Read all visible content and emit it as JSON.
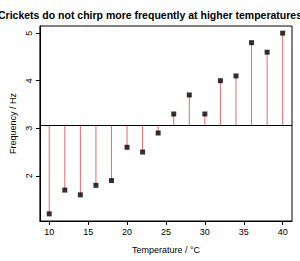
{
  "chart_data": {
    "type": "scatter",
    "title": "Crickets do not chirp more frequently at higher temperatures",
    "x_label": "Temperature / °C",
    "y_label": "Frequency / Hz",
    "x": [
      10,
      12,
      14,
      16,
      18,
      20,
      22,
      24,
      26,
      28,
      30,
      32,
      34,
      36,
      38,
      40
    ],
    "values": [
      1.2,
      1.7,
      1.6,
      1.8,
      1.9,
      2.6,
      2.5,
      2.9,
      3.3,
      3.7,
      3.3,
      4.0,
      4.1,
      4.8,
      4.6,
      5.0
    ],
    "baseline": 3.06,
    "color": "#000000",
    "marker": "square",
    "xlim": [
      8.8,
      41.2
    ],
    "xticks": [
      10,
      15,
      20,
      25,
      30,
      35,
      40
    ],
    "ylim": [
      1.05,
      5.15
    ],
    "yticks": [
      2,
      3,
      4,
      5
    ],
    "grid": false
  }
}
